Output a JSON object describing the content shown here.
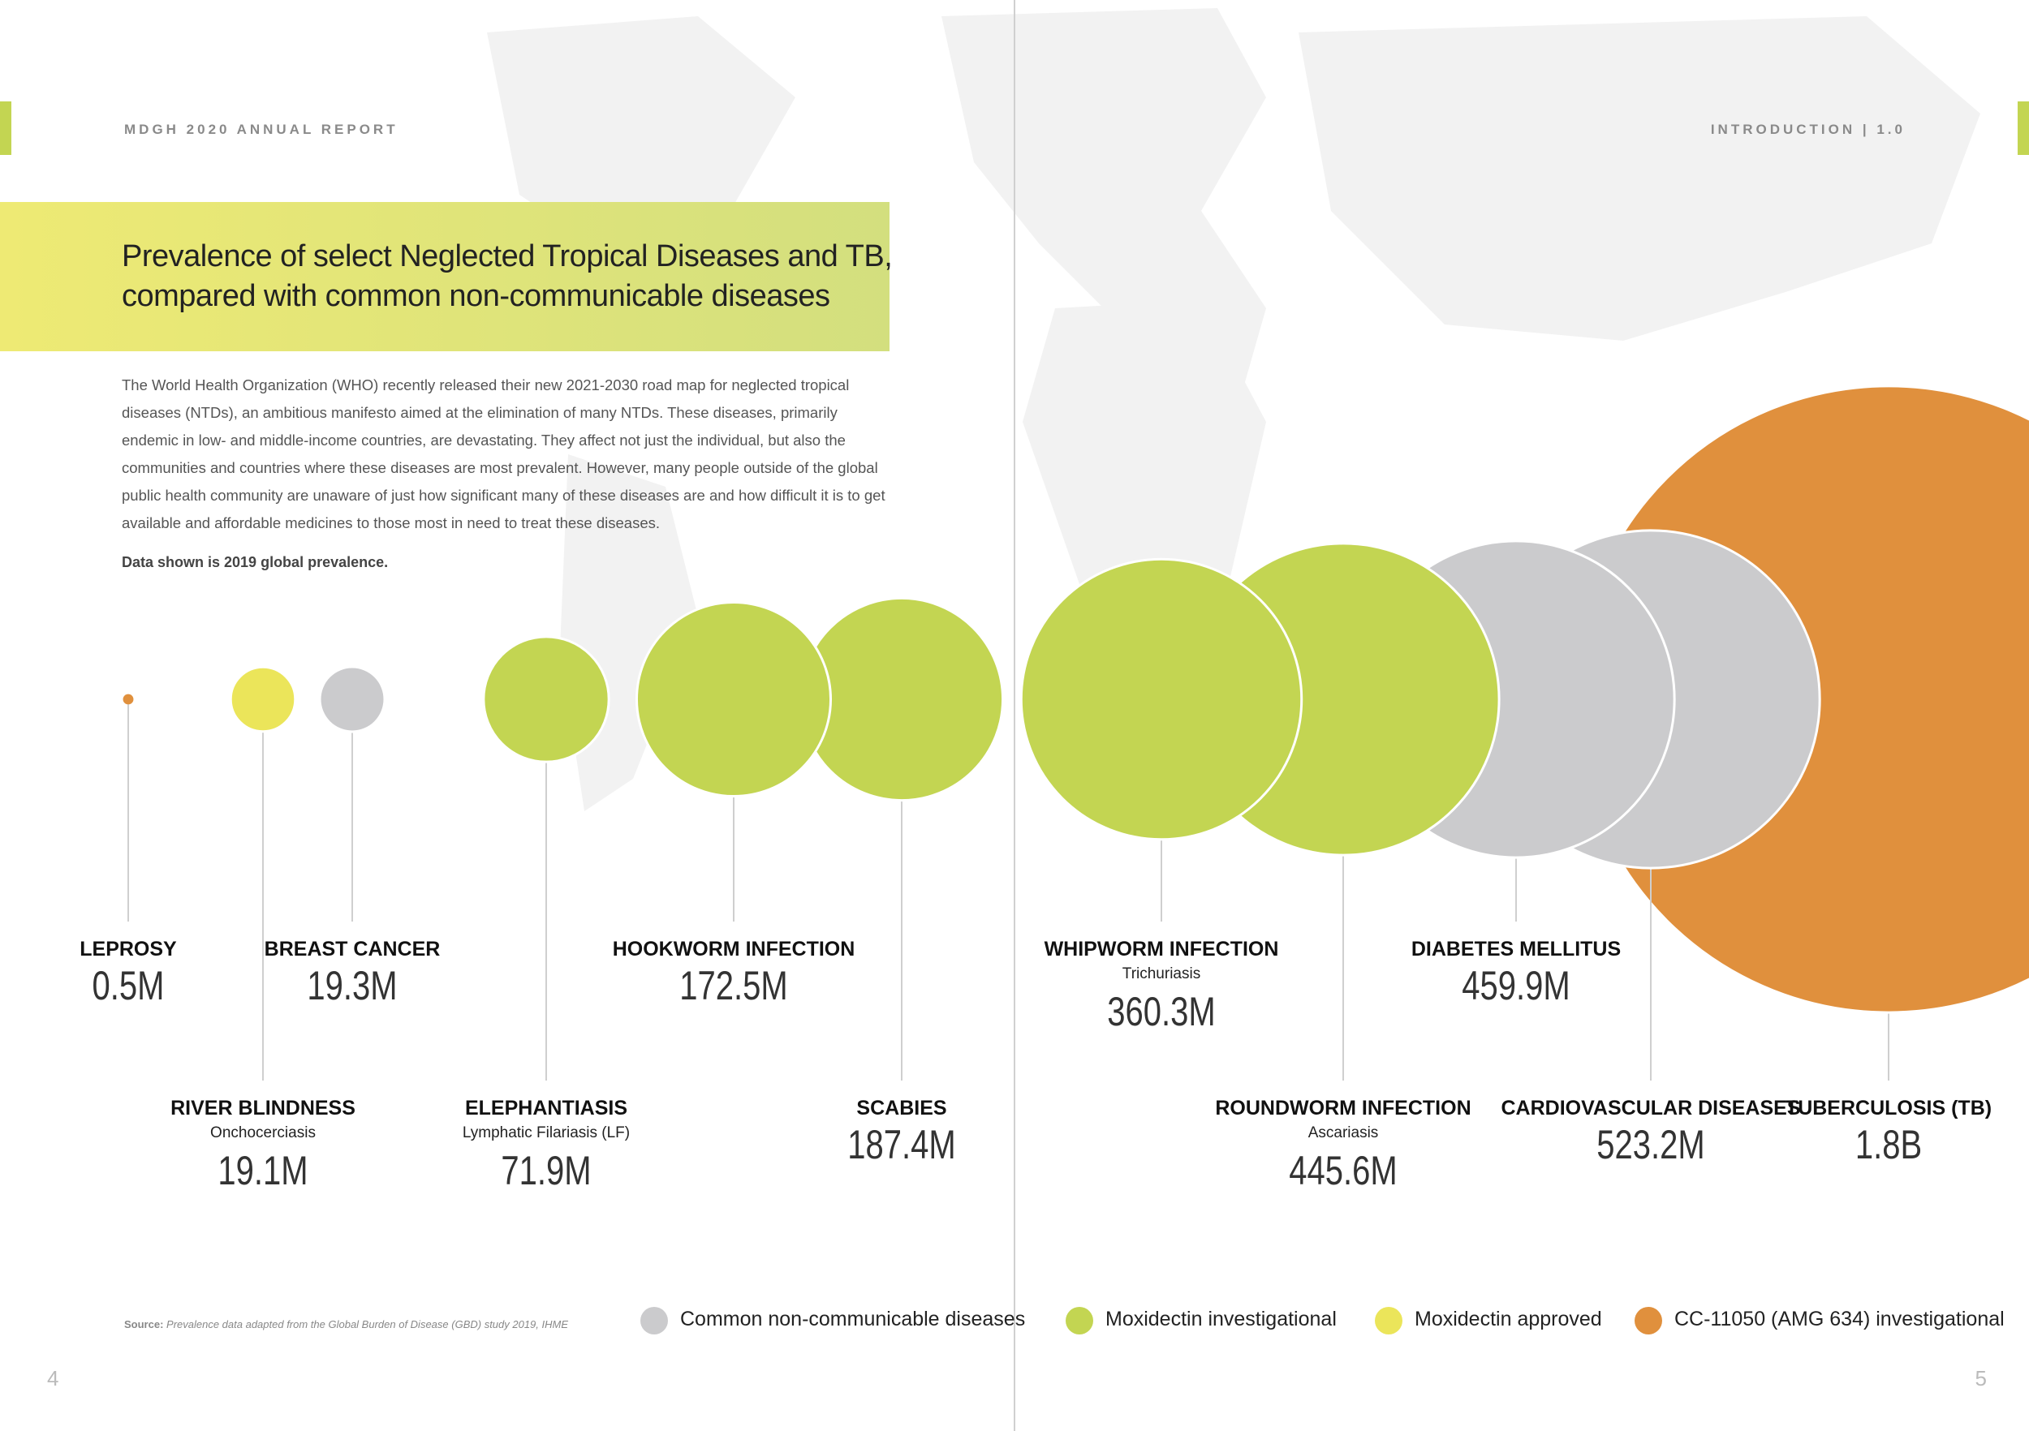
{
  "header": {
    "left": "MDGH 2020 ANNUAL REPORT",
    "right": "INTRODUCTION  |  1.0"
  },
  "title": {
    "lines": [
      "Prevalence of select Neglected Tropical Diseases and TB,",
      "compared with common non-communicable diseases"
    ]
  },
  "intro": "The World Health Organization (WHO) recently released their new 2021-2030 road map for neglected tropical diseases (NTDs), an ambitious manifesto aimed at the elimination of many NTDs. These diseases, primarily endemic in low- and middle-income countries, are devastating. They affect not just the individual, but also the communities and countries where these diseases are most prevalent. However, many people outside of the global public health community are unaware of just how significant many of these diseases are and how difficult it is to get available and affordable medicines to those most in need to treat these diseases.",
  "note": "Data shown is 2019 global prevalence.",
  "diseases": [
    {
      "name": "LEPROSY",
      "value": 0.5,
      "value_label": "0.5M",
      "color": "#e0903d"
    },
    {
      "name": "RIVER BLINDNESS",
      "subtitle": "Onchocerciasis",
      "value": 19.1,
      "value_label": "19.1M",
      "color": "#ebe55a"
    },
    {
      "name": "BREAST CANCER",
      "value": 19.3,
      "value_label": "19.3M",
      "color": "#cbcbcd"
    },
    {
      "name": "ELEPHANTIASIS",
      "subtitle": "Lymphatic Filariasis (LF)",
      "value": 71.9,
      "value_label": "71.9M",
      "color": "#c3d552"
    },
    {
      "name": "HOOKWORM INFECTION",
      "value": 172.5,
      "value_label": "172.5M",
      "color": "#c3d552"
    },
    {
      "name": "SCABIES",
      "value": 187.4,
      "value_label": "187.4M",
      "color": "#c3d552"
    },
    {
      "name": "WHIPWORM INFECTION",
      "subtitle": "Trichuriasis",
      "value": 360.3,
      "value_label": "360.3M",
      "color": "#c3d552"
    },
    {
      "name": "ROUNDWORM INFECTION",
      "subtitle": "Ascariasis",
      "value": 445.6,
      "value_label": "445.6M",
      "color": "#c3d552"
    },
    {
      "name": "DIABETES MELLITUS",
      "value": 459.9,
      "value_label": "459.9M",
      "color": "#cbcbcd"
    },
    {
      "name": "CARDIOVASCULAR DISEASES",
      "value": 523.2,
      "value_label": "523.2M",
      "color": "#cbcbcd"
    },
    {
      "name": "TUBERCULOSIS (TB)",
      "value": 1800,
      "value_label": "1.8B",
      "color": "#e0903d"
    }
  ],
  "source": {
    "label": "Source:",
    "text": "Prevalence data adapted from the Global Burden of Disease (GBD) study 2019, IHME"
  },
  "legend": [
    {
      "label": "Common non-communicable diseases",
      "color": "#cbcbcd"
    },
    {
      "label": "Moxidectin investigational",
      "color": "#c3d552"
    },
    {
      "label": "Moxidectin approved",
      "color": "#ebe55a"
    },
    {
      "label": "CC-11050 (AMG 634) investigational",
      "color": "#e0903d"
    }
  ],
  "page_numbers": [
    4,
    5
  ]
}
